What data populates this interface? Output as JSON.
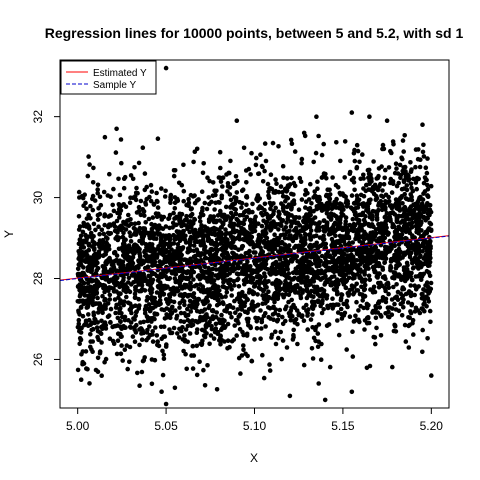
{
  "chart_data": {
    "type": "scatter",
    "title": "Regression lines for 10000 points, between 5 and 5.2, with sd 1",
    "xlabel": "X",
    "ylabel": "Y",
    "xlim": [
      4.99,
      5.21
    ],
    "ylim": [
      24.8,
      33.4
    ],
    "x_ticks": [
      5.0,
      5.05,
      5.1,
      5.15,
      5.2
    ],
    "x_tick_labels": [
      "5.00",
      "5.05",
      "5.10",
      "5.15",
      "5.20"
    ],
    "y_ticks": [
      26,
      28,
      30,
      32
    ],
    "y_tick_labels": [
      "26",
      "28",
      "30",
      "32"
    ],
    "grid": false,
    "legend": {
      "position": "top-left",
      "entries": [
        {
          "label": "Estimated Y",
          "color": "#ff0000",
          "style": "solid"
        },
        {
          "label": "Sample Y",
          "color": "#0000cc",
          "style": "dashed"
        }
      ]
    },
    "point_color": "#000000",
    "series": [
      {
        "name": "Estimated Y",
        "type": "line",
        "color": "#ff0000",
        "x": [
          4.99,
          5.21
        ],
        "y": [
          27.96,
          29.06
        ]
      },
      {
        "name": "Sample Y",
        "type": "line",
        "color": "#0000cc",
        "x": [
          4.99,
          5.21
        ],
        "y": [
          27.95,
          29.05
        ]
      }
    ],
    "scatter_points": [
      [
        5.05,
        24.9
      ],
      [
        5.035,
        25.35
      ],
      [
        5.002,
        25.5
      ],
      [
        5.14,
        25.0
      ],
      [
        5.155,
        25.2
      ],
      [
        5.2,
        25.6
      ],
      [
        5.12,
        25.1
      ],
      [
        5.055,
        25.3
      ],
      [
        5.09,
        31.9
      ],
      [
        5.135,
        32.0
      ],
      [
        5.155,
        32.1
      ],
      [
        5.165,
        32.0
      ],
      [
        5.05,
        33.2
      ],
      [
        5.195,
        31.8
      ],
      [
        5.022,
        31.7
      ],
      [
        5.175,
        31.9
      ]
    ]
  }
}
